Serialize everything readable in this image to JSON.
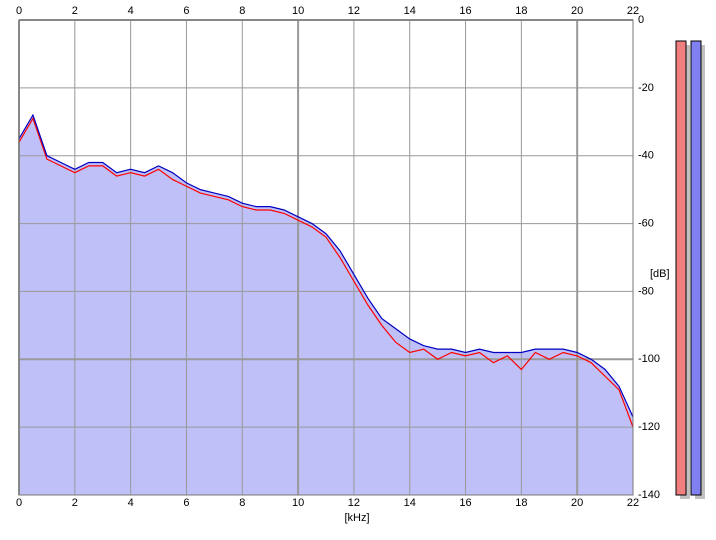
{
  "chart_data": {
    "type": "line",
    "x": [
      0,
      0.5,
      1,
      1.5,
      2,
      2.5,
      3,
      3.5,
      4,
      4.5,
      5,
      5.5,
      6,
      6.5,
      7,
      7.5,
      8,
      8.5,
      9,
      9.5,
      10,
      10.5,
      11,
      11.5,
      12,
      12.5,
      13,
      13.5,
      14,
      14.5,
      15,
      15.5,
      16,
      16.5,
      17,
      17.5,
      18,
      18.5,
      19,
      19.5,
      20,
      20.5,
      21,
      21.5,
      22
    ],
    "series": [
      {
        "color": "#ff0000",
        "values": [
          -36,
          -29,
          -41,
          -43,
          -45,
          -43,
          -43,
          -46,
          -45,
          -46,
          -44,
          -47,
          -49,
          -51,
          -52,
          -53,
          -55,
          -56,
          -56,
          -57,
          -59,
          -61,
          -64,
          -70,
          -77,
          -84,
          -90,
          -95,
          -98,
          -97,
          -100,
          -98,
          -99,
          -98,
          -101,
          -99,
          -103,
          -98,
          -100,
          -98,
          -99,
          -101,
          -105,
          -109,
          -120
        ]
      },
      {
        "color": "#0000c0",
        "values": [
          -35,
          -28,
          -40,
          -42,
          -44,
          -42,
          -42,
          -45,
          -44,
          -45,
          -43,
          -45,
          -48,
          -50,
          -51,
          -52,
          -54,
          -55,
          -55,
          -56,
          -58,
          -60,
          -63,
          -68,
          -75,
          -82,
          -88,
          -91,
          -94,
          -96,
          -97,
          -97,
          -98,
          -97,
          -98,
          -98,
          -98,
          -97,
          -97,
          -97,
          -98,
          -100,
          -103,
          -108,
          -117
        ]
      }
    ],
    "area_color": "#c0c0f8",
    "xlim": [
      0,
      22
    ],
    "xticks": [
      0,
      2,
      4,
      6,
      8,
      10,
      12,
      14,
      16,
      18,
      20,
      22
    ],
    "ylim": [
      -140,
      0
    ],
    "yticks": [
      0,
      -20,
      -40,
      -60,
      -80,
      -100,
      -120,
      -140
    ],
    "xlabel": "[kHz]",
    "ylabel": "[dB]",
    "grid": true
  }
}
